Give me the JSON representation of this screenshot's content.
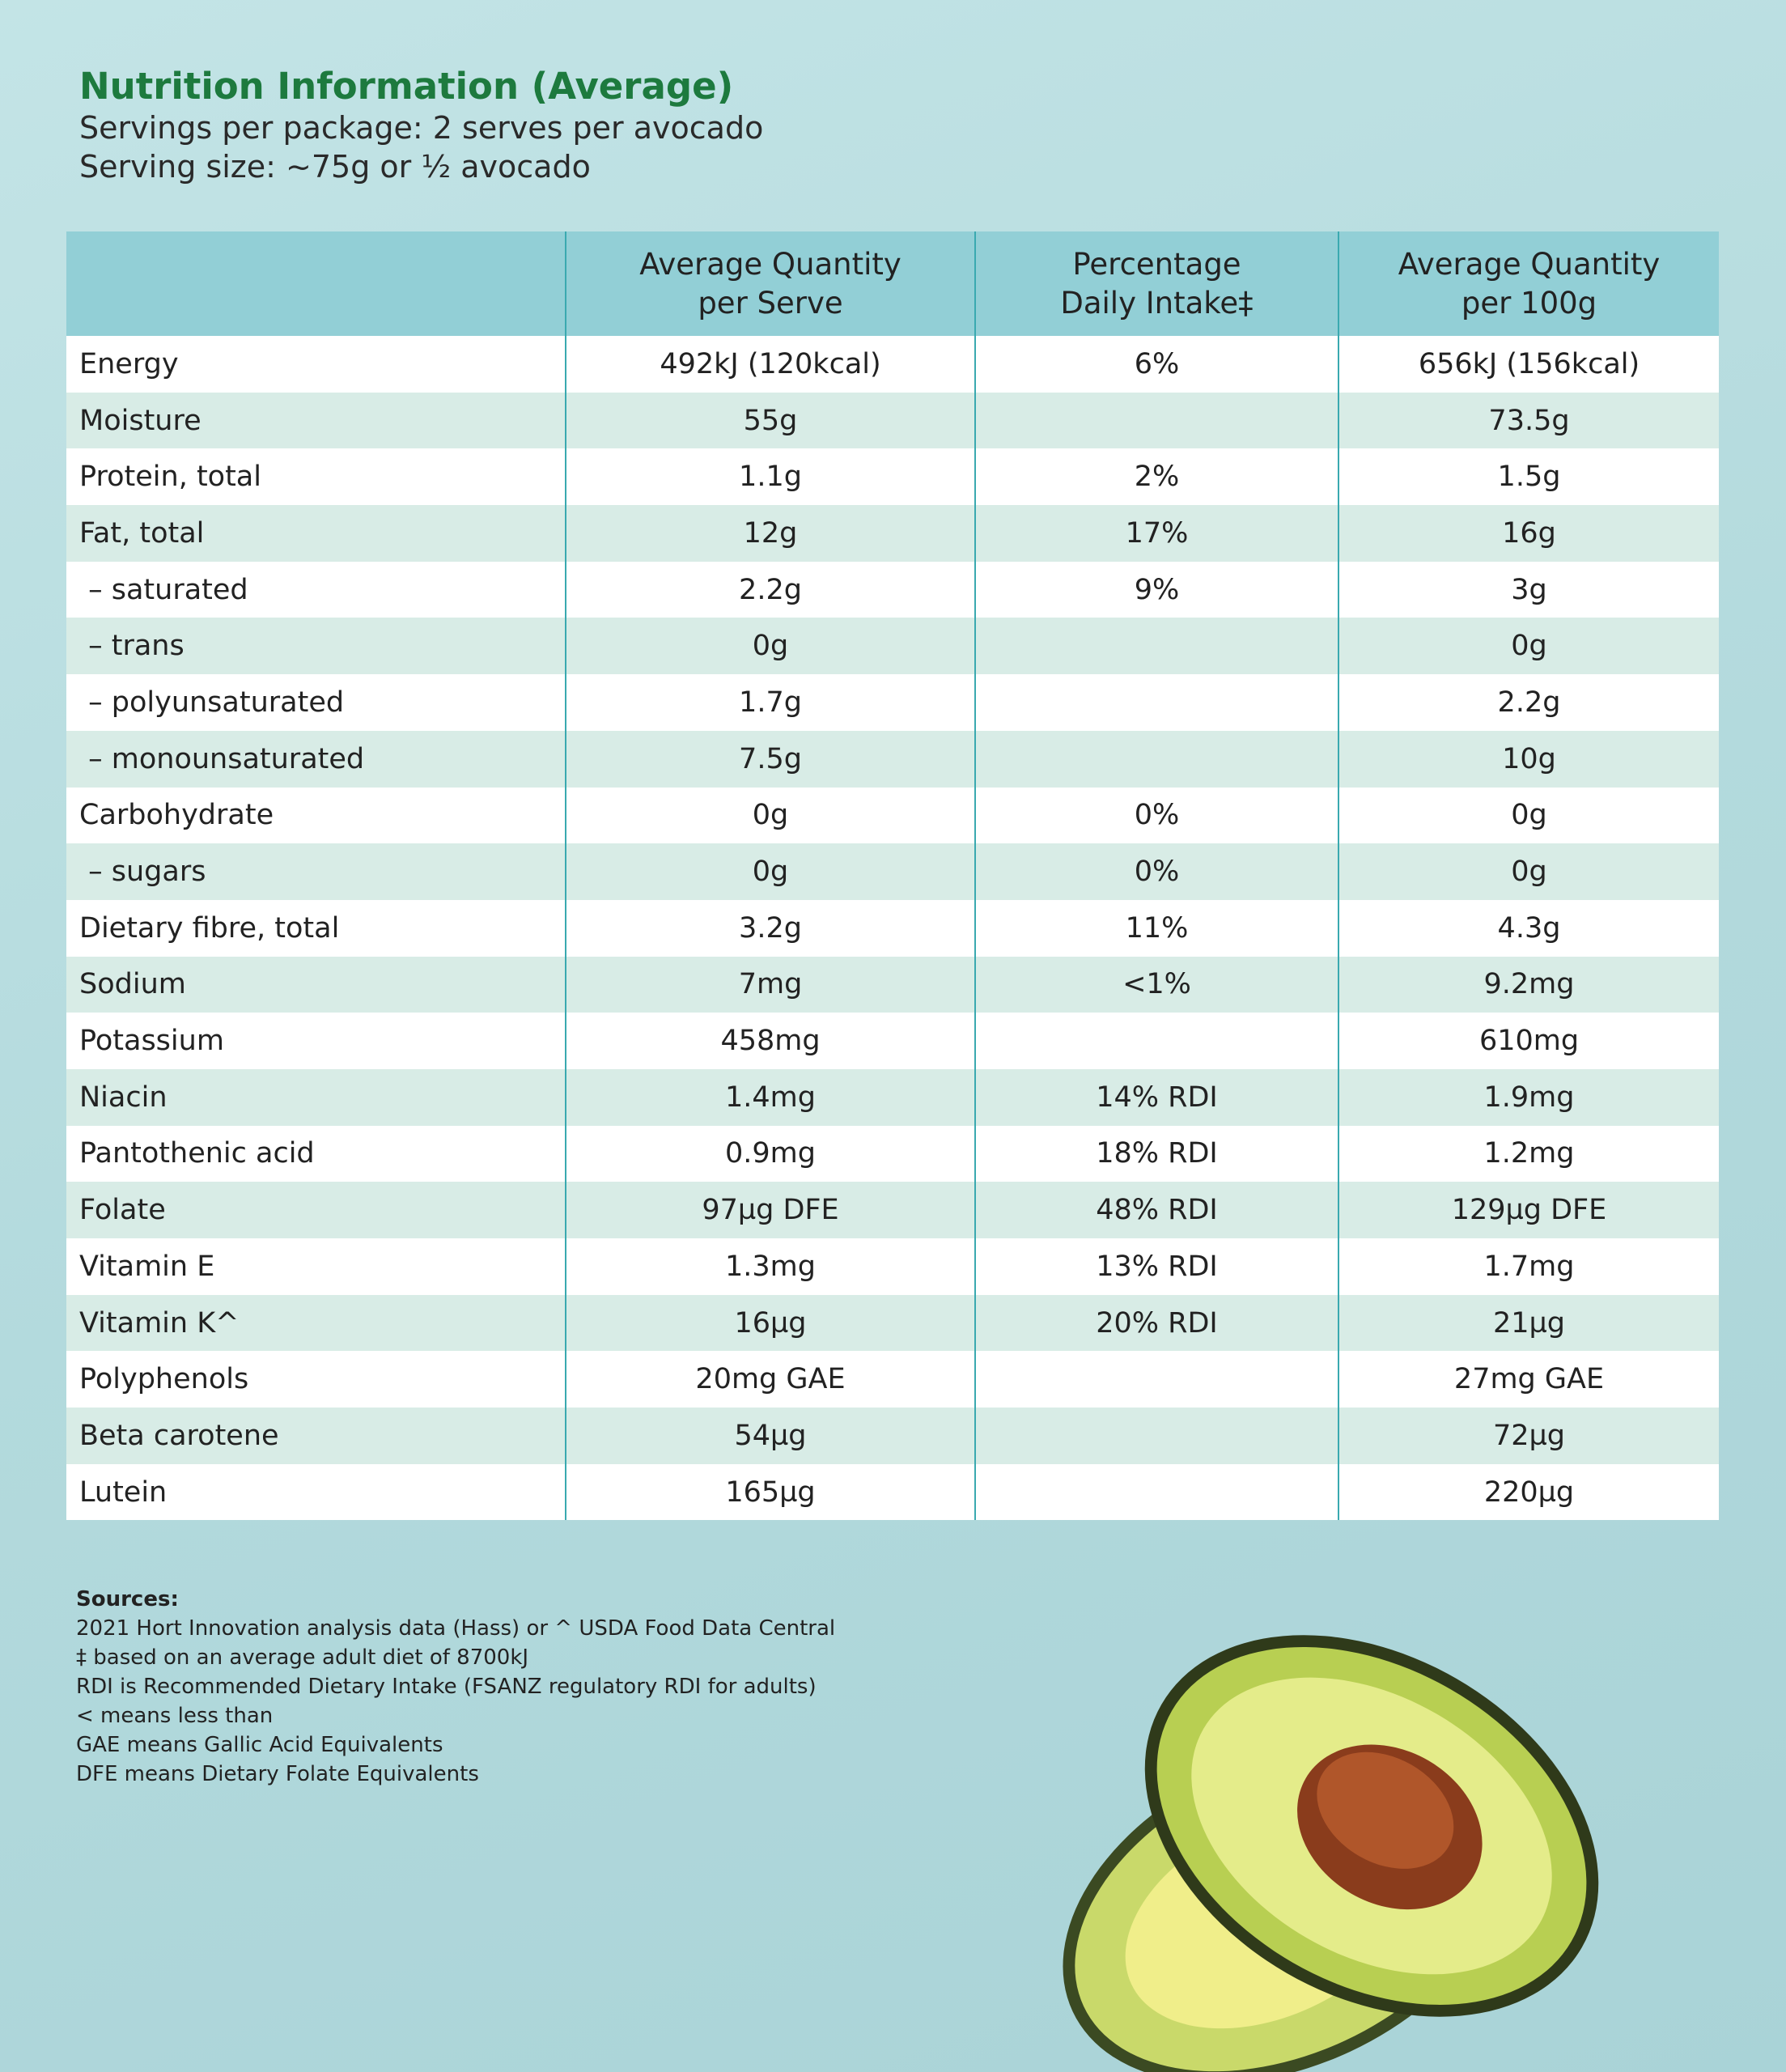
{
  "header": {
    "title": "Nutrition Information (Average)",
    "servings": "Servings per package: 2 serves per avocado",
    "serving_size": "Serving size: ~75g or ½ avocado"
  },
  "table": {
    "header": [
      null,
      "Average Quantity\nper Serve",
      "Percentage\nDaily Intake‡",
      "Average Quantity\nper 100g"
    ],
    "rows": [
      [
        "Energy",
        "492kJ (120kcal)",
        "6%",
        "656kJ (156kcal)"
      ],
      [
        "Moisture",
        "55g",
        null,
        "73.5g"
      ],
      [
        "Protein, total",
        "1.1g",
        "2%",
        "1.5g"
      ],
      [
        "Fat, total",
        "12g",
        "17%",
        "16g"
      ],
      [
        " – saturated",
        "2.2g",
        "9%",
        "3g"
      ],
      [
        " – trans",
        "0g",
        null,
        "0g"
      ],
      [
        " – polyunsaturated",
        "1.7g",
        null,
        "2.2g"
      ],
      [
        " – monounsaturated",
        "7.5g",
        null,
        "10g"
      ],
      [
        "Carbohydrate",
        "0g",
        "0%",
        "0g"
      ],
      [
        " – sugars",
        "0g",
        "0%",
        "0g"
      ],
      [
        "Dietary fibre, total",
        "3.2g",
        "11%",
        "4.3g"
      ],
      [
        "Sodium",
        "7mg",
        "<1%",
        "9.2mg"
      ],
      [
        "Potassium",
        "458mg",
        null,
        "610mg"
      ],
      [
        "Niacin",
        "1.4mg",
        "14% RDI",
        "1.9mg"
      ],
      [
        "Pantothenic acid",
        "0.9mg",
        "18% RDI",
        "1.2mg"
      ],
      [
        "Folate",
        "97µg DFE",
        "48% RDI",
        "129µg DFE"
      ],
      [
        "Vitamin E",
        "1.3mg",
        "13% RDI",
        "1.7mg"
      ],
      [
        "Vitamin K^",
        "16µg",
        "20% RDI",
        "21µg"
      ],
      [
        "Polyphenols",
        "20mg GAE",
        null,
        "27mg GAE"
      ],
      [
        "Beta carotene",
        "54µg",
        null,
        "72µg"
      ],
      [
        "Lutein",
        "165µg",
        null,
        "220µg"
      ]
    ]
  },
  "sources": {
    "heading": "Sources:",
    "lines": [
      "2021 Hort Innovation analysis data (Hass) or ^ USDA Food Data Central",
      "‡ based on an average adult diet of 8700kJ",
      "RDI is Recommended Dietary Intake (FSANZ regulatory RDI for adults)",
      "< means less than",
      "GAE means Gallic Acid Equivalents",
      "DFE means Dietary Folate Equivalents"
    ]
  }
}
